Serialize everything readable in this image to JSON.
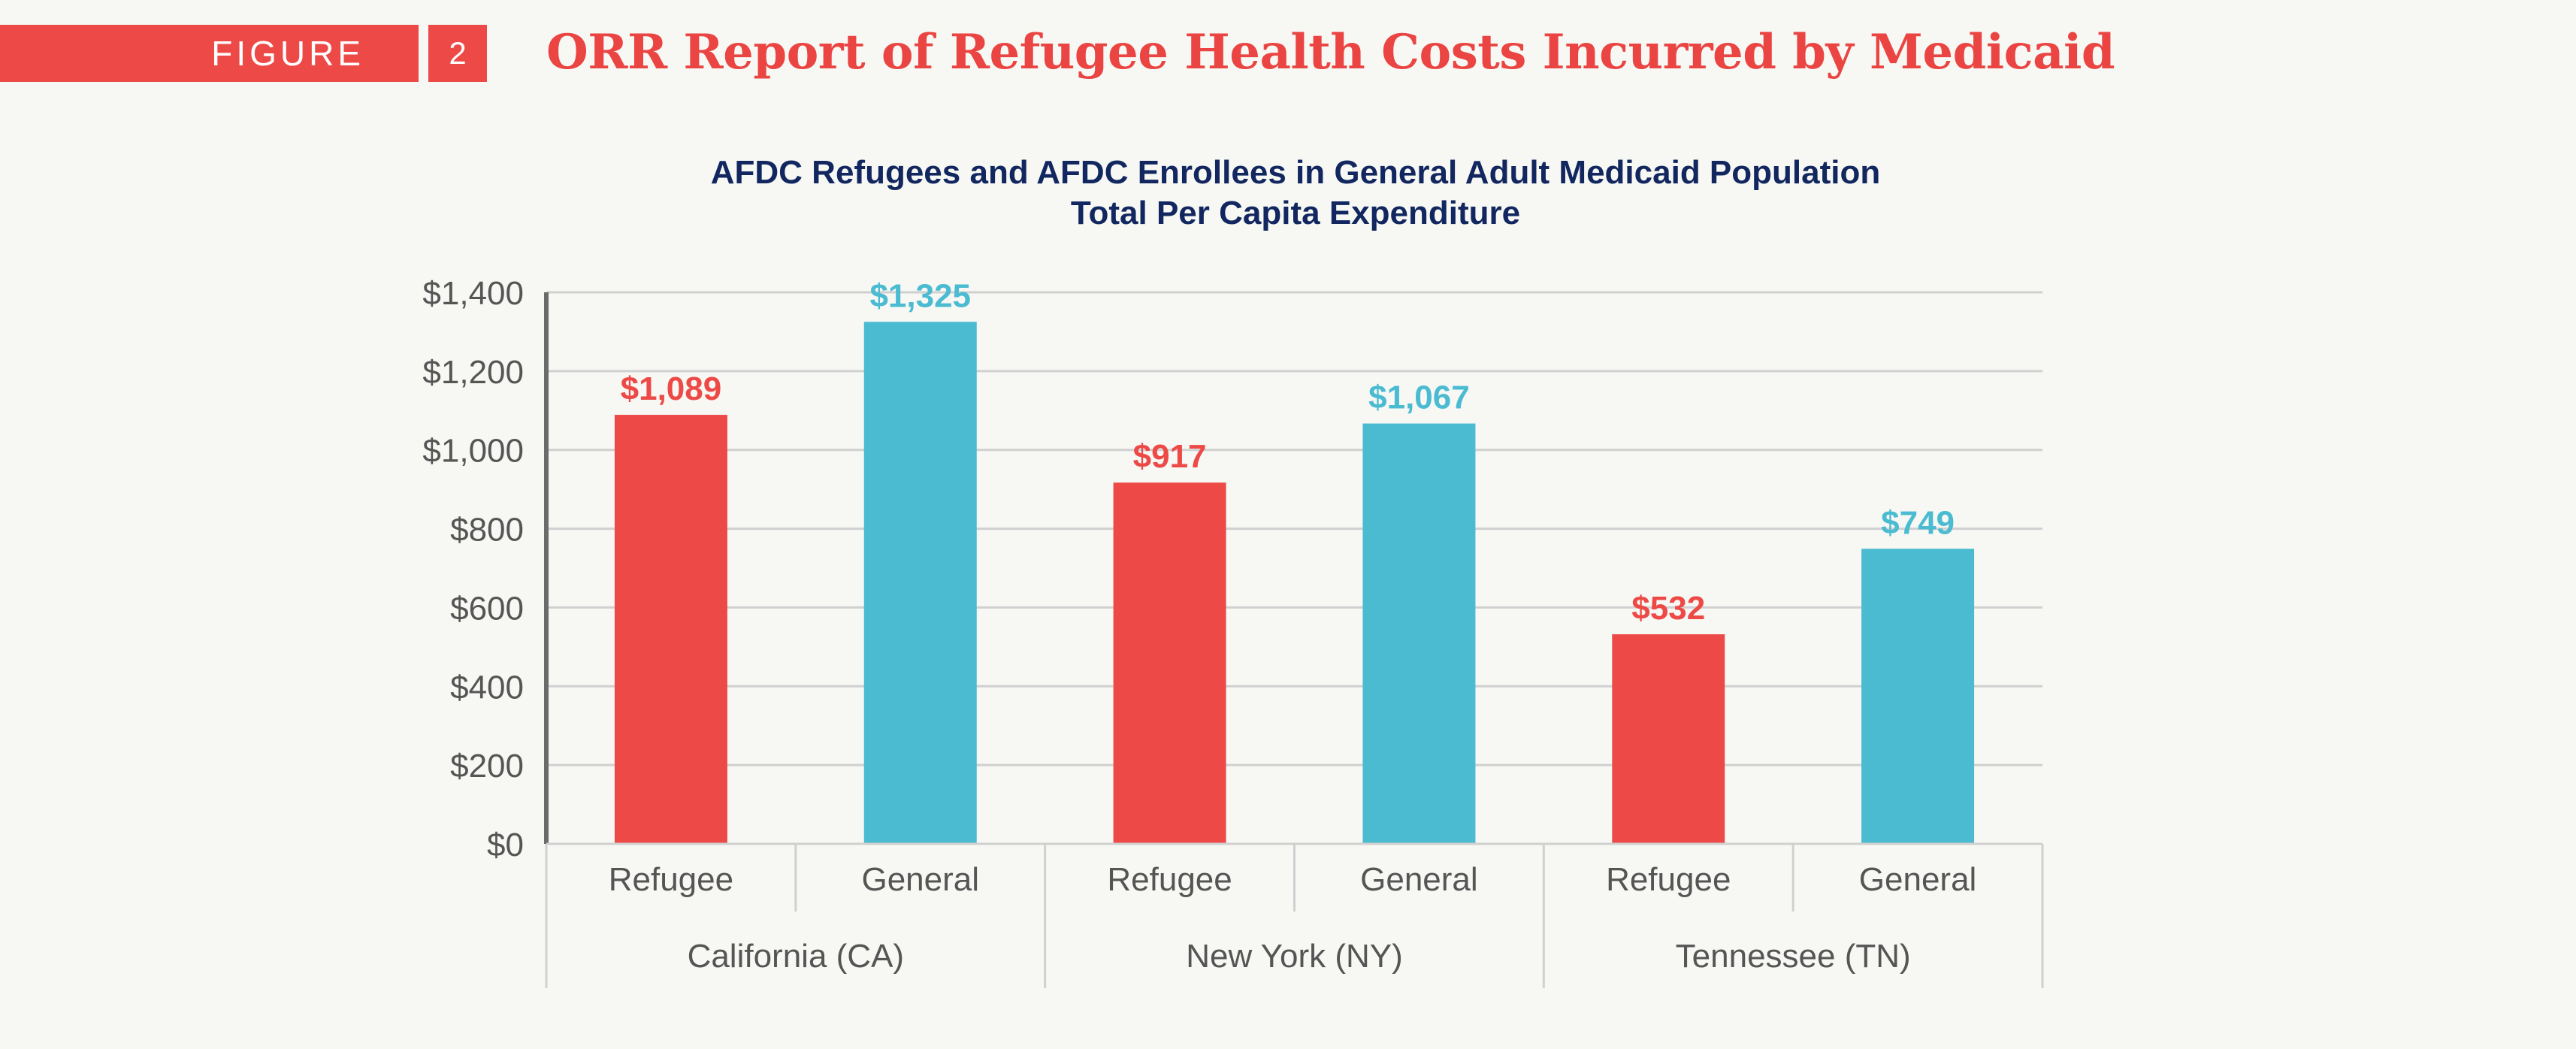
{
  "header": {
    "figure_label": "FIGURE",
    "figure_number": "2",
    "title": "ORR Report of Refugee Health Costs Incurred by Medicaid"
  },
  "colors": {
    "refugee": "#ed4a47",
    "general": "#4bbbd2",
    "title_red": "#ea4542",
    "chart_title_navy": "#12275f",
    "axis_text": "#555555",
    "gridline": "#d0d0d0",
    "background": "#f7f8f4"
  },
  "chart_data": {
    "type": "bar",
    "title": "AFDC Refugees and AFDC Enrollees in General Adult Medicaid Population",
    "subtitle": "Total Per Capita Expenditure",
    "xlabel": "",
    "ylabel": "",
    "ylim": [
      0,
      1400
    ],
    "y_ticks": [
      0,
      200,
      400,
      600,
      800,
      1000,
      1200,
      1400
    ],
    "y_tick_labels": [
      "$0",
      "$200",
      "$400",
      "$600",
      "$800",
      "$1,000",
      "$1,200",
      "$1,400"
    ],
    "grid": true,
    "legend": "none",
    "groups": [
      {
        "label": "California (CA)",
        "bars": [
          {
            "category": "Refugee",
            "value": 1089,
            "label": "$1,089",
            "series": "refugee"
          },
          {
            "category": "General",
            "value": 1325,
            "label": "$1,325",
            "series": "general"
          }
        ]
      },
      {
        "label": "New York (NY)",
        "bars": [
          {
            "category": "Refugee",
            "value": 917,
            "label": "$917",
            "series": "refugee"
          },
          {
            "category": "General",
            "value": 1067,
            "label": "$1,067",
            "series": "general"
          }
        ]
      },
      {
        "label": "Tennessee (TN)",
        "bars": [
          {
            "category": "Refugee",
            "value": 532,
            "label": "$532",
            "series": "refugee"
          },
          {
            "category": "General",
            "value": 749,
            "label": "$749",
            "series": "general"
          }
        ]
      }
    ]
  }
}
